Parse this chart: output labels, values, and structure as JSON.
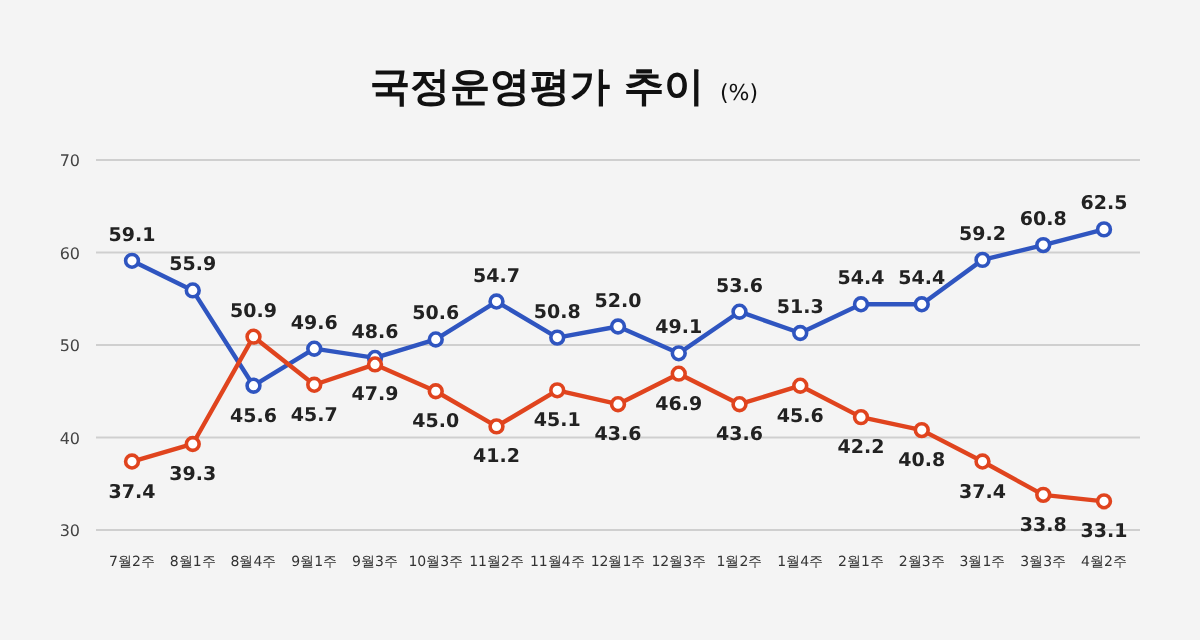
{
  "chart_data": {
    "type": "line",
    "title": "국정운영평가 추이",
    "subtitle": "(%)",
    "categories": [
      "7월2주",
      "8월1주",
      "8월4주",
      "9월1주",
      "9월3주",
      "10월3주",
      "11월2주",
      "11월4주",
      "12월1주",
      "12월3주",
      "1월2주",
      "1월4주",
      "2월1주",
      "2월3주",
      "3월1주",
      "3월3주",
      "4월2주"
    ],
    "series": [
      {
        "color": "#2f55c0",
        "values": [
          59.1,
          55.9,
          45.6,
          49.6,
          48.6,
          50.6,
          54.7,
          50.8,
          52.0,
          49.1,
          53.6,
          51.3,
          54.4,
          54.4,
          59.2,
          60.8,
          62.5
        ],
        "value_labels": [
          "59.1",
          "55.9",
          "45.6",
          "49.6",
          "48.6",
          "50.6",
          "54.7",
          "50.8",
          "52.0",
          "49.1",
          "53.6",
          "51.3",
          "54.4",
          "54.4",
          "59.2",
          "60.8",
          "62.5"
        ]
      },
      {
        "color": "#e0441e",
        "values": [
          37.4,
          39.3,
          50.9,
          45.7,
          47.9,
          45.0,
          41.2,
          45.1,
          43.6,
          46.9,
          43.6,
          45.6,
          42.2,
          40.8,
          37.4,
          33.8,
          33.1
        ],
        "value_labels": [
          "37.4",
          "39.3",
          "50.9",
          "45.7",
          "47.9",
          "45.0",
          "41.2",
          "45.1",
          "43.6",
          "46.9",
          "43.6",
          "45.6",
          "42.2",
          "40.8",
          "37.4",
          "33.8",
          "33.1"
        ]
      }
    ],
    "ylim": [
      30,
      70
    ],
    "yticks": [
      30,
      40,
      50,
      60,
      70
    ],
    "grid": "y",
    "marker": "circle",
    "line_style": "solid"
  }
}
